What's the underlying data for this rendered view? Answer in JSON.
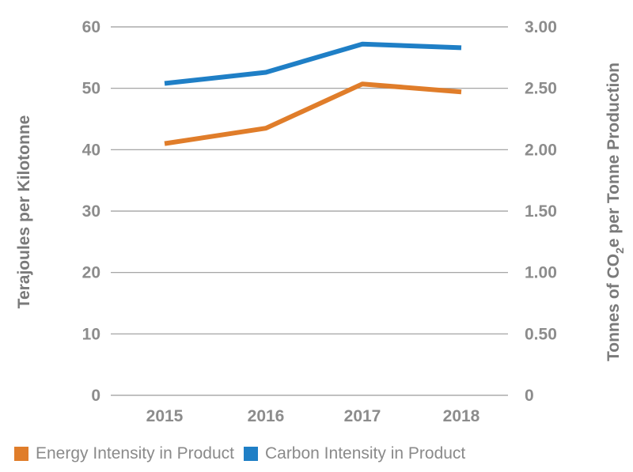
{
  "chart_data": {
    "type": "line",
    "categories": [
      "2015",
      "2016",
      "2017",
      "2018"
    ],
    "series": [
      {
        "name": "Energy Intensity in Product",
        "axis": "left",
        "color": "#e07d2a",
        "values": [
          41.0,
          43.5,
          50.7,
          49.4
        ]
      },
      {
        "name": "Carbon Intensity in Product",
        "axis": "right",
        "color": "#1f7fc6",
        "values": [
          2.54,
          2.63,
          2.86,
          2.83
        ]
      }
    ],
    "ylabel": "Terajoules per Kilotonne",
    "ylim": [
      0,
      60
    ],
    "yticks": [
      "0",
      "10",
      "20",
      "30",
      "40",
      "50",
      "60"
    ],
    "y2label": {
      "pre": "Tonnes of CO",
      "sub": "2",
      "post": "e per Tonne Production"
    },
    "y2lim": [
      0,
      3
    ],
    "y2ticks": [
      "0",
      "0.50",
      "1.00",
      "1.50",
      "2.00",
      "2.50",
      "3.00"
    ],
    "grid": true,
    "legend_position": "bottom-left"
  }
}
